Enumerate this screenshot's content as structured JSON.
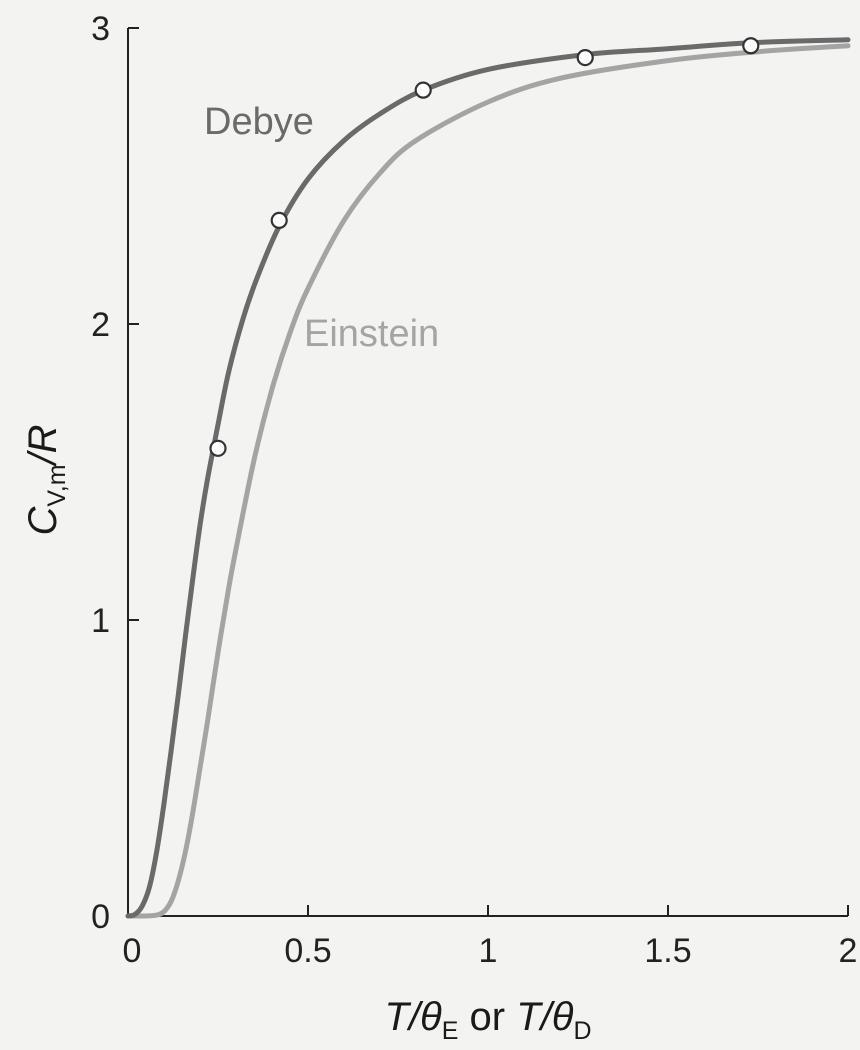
{
  "chart_data": {
    "type": "line",
    "xlim": [
      0,
      2
    ],
    "ylim": [
      0,
      3
    ],
    "x_ticks": [
      {
        "value": 0,
        "label": "0"
      },
      {
        "value": 0.5,
        "label": "0.5"
      },
      {
        "value": 1,
        "label": "1"
      },
      {
        "value": 1.5,
        "label": "1.5"
      },
      {
        "value": 2,
        "label": "2"
      }
    ],
    "y_ticks": [
      {
        "value": 0,
        "label": "0"
      },
      {
        "value": 1,
        "label": "1"
      },
      {
        "value": 2,
        "label": "2"
      },
      {
        "value": 3,
        "label": "3"
      }
    ],
    "xlabel": {
      "t1": "T/θ",
      "s1": "E",
      "mid": " or ",
      "t2": "T/θ",
      "s2": "D"
    },
    "ylabel": {
      "main": "C",
      "sub": "V,m",
      "rest": "/R"
    },
    "grid": false,
    "series": [
      {
        "name": "Debye",
        "color": "#6a6a6a",
        "x": [
          0,
          0.02,
          0.04,
          0.06,
          0.08,
          0.1,
          0.12,
          0.14,
          0.16,
          0.18,
          0.2,
          0.22,
          0.25,
          0.28,
          0.32,
          0.36,
          0.42,
          0.5,
          0.6,
          0.7,
          0.82,
          1.0,
          1.27,
          1.5,
          1.73,
          2.0
        ],
        "y": [
          0,
          0.006,
          0.035,
          0.1,
          0.22,
          0.38,
          0.56,
          0.75,
          0.95,
          1.14,
          1.32,
          1.47,
          1.66,
          1.84,
          2.02,
          2.16,
          2.33,
          2.49,
          2.62,
          2.71,
          2.79,
          2.86,
          2.91,
          2.93,
          2.95,
          2.96
        ]
      },
      {
        "name": "Einstein",
        "color": "#a4a4a4",
        "x": [
          0,
          0.05,
          0.08,
          0.1,
          0.12,
          0.14,
          0.16,
          0.18,
          0.2,
          0.22,
          0.25,
          0.28,
          0.3,
          0.35,
          0.4,
          0.45,
          0.5,
          0.6,
          0.7,
          0.8,
          1.0,
          1.2,
          1.5,
          1.75,
          2.0
        ],
        "y": [
          0,
          0.0001,
          0.003,
          0.015,
          0.05,
          0.12,
          0.22,
          0.35,
          0.5,
          0.65,
          0.89,
          1.11,
          1.24,
          1.54,
          1.78,
          1.97,
          2.12,
          2.35,
          2.51,
          2.62,
          2.75,
          2.83,
          2.89,
          2.92,
          2.94
        ]
      }
    ],
    "markers": {
      "series": "Debye",
      "x": [
        0.25,
        0.42,
        0.82,
        1.27,
        1.73
      ],
      "y": [
        1.58,
        2.35,
        2.79,
        2.9,
        2.94
      ]
    }
  }
}
